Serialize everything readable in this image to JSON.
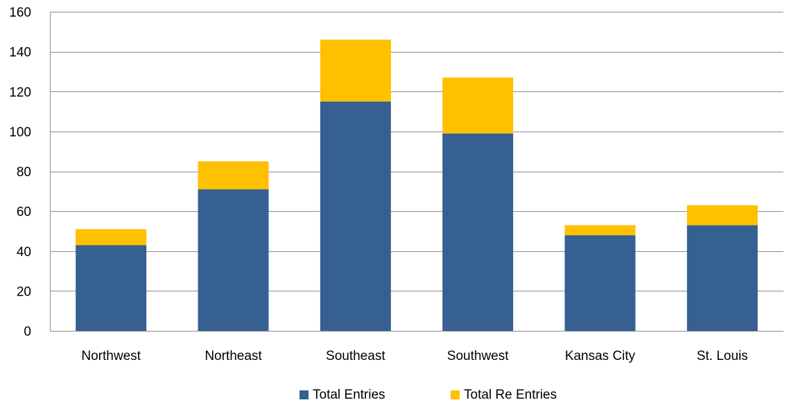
{
  "chart_data": {
    "type": "bar",
    "stacked": true,
    "categories": [
      "Northwest",
      "Northeast",
      "Southeast",
      "Southwest",
      "Kansas City",
      "St. Louis"
    ],
    "series": [
      {
        "name": "Total Entries",
        "values": [
          43,
          71,
          115,
          99,
          48,
          53
        ],
        "color": "#376092"
      },
      {
        "name": "Total Re Entries",
        "values": [
          8,
          14,
          31,
          28,
          5,
          10
        ],
        "color": "#FFC000"
      }
    ],
    "ylim": [
      0,
      160
    ],
    "yticks": [
      0,
      20,
      40,
      60,
      80,
      100,
      120,
      140,
      160
    ],
    "grid": true,
    "legend_position": "bottom"
  }
}
